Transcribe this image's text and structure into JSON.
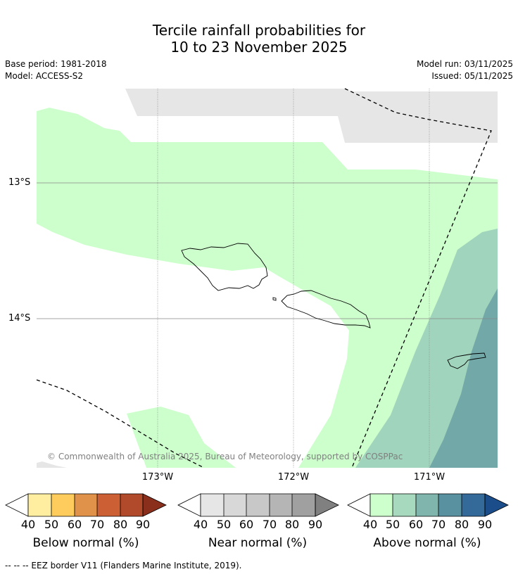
{
  "title_line1": "Tercile rainfall probabilities for",
  "title_line2": "10 to 23 November 2025",
  "base_period": "Base period: 1981-2018",
  "model": "Model: ACCESS-S2",
  "model_run": "Model run: 03/11/2025",
  "issued": "Issued: 05/11/2025",
  "copyright": "© Commonwealth of Australia 2025, Bureau of Meteorology, supported by COSPPac",
  "lat_labels": [
    "13°S",
    "14°S"
  ],
  "lon_labels": [
    "173°W",
    "172°W",
    "171°W"
  ],
  "colorbars": [
    {
      "title": "Below normal (%)",
      "ticks": [
        "40",
        "50",
        "60",
        "70",
        "80",
        "90"
      ],
      "colors": [
        "#ffeda0",
        "#fecc5c",
        "#e1924a",
        "#cc5f33",
        "#b04a2a",
        "#8b2f1d"
      ]
    },
    {
      "title": "Near normal (%)",
      "ticks": [
        "40",
        "50",
        "60",
        "70",
        "80",
        "90"
      ],
      "colors": [
        "#e6e6e6",
        "#d8d8d8",
        "#c8c8c8",
        "#b5b5b5",
        "#a0a0a0",
        "#808080"
      ]
    },
    {
      "title": "Above normal (%)",
      "ticks": [
        "40",
        "50",
        "60",
        "70",
        "80",
        "90"
      ],
      "colors": [
        "#ccffcc",
        "#a6d9bd",
        "#7fb5ad",
        "#5a91a0",
        "#346a9a",
        "#1a4d8a"
      ]
    }
  ],
  "footnote": "--  --  -- EEZ border V11 (Flanders Marine Institute, 2019).",
  "colors": {
    "near_normal": "#e6e6e6",
    "above_40_50": "#ccffcc",
    "above_50_60": "#a0d4bd",
    "above_60_70": "#72a8a8"
  }
}
